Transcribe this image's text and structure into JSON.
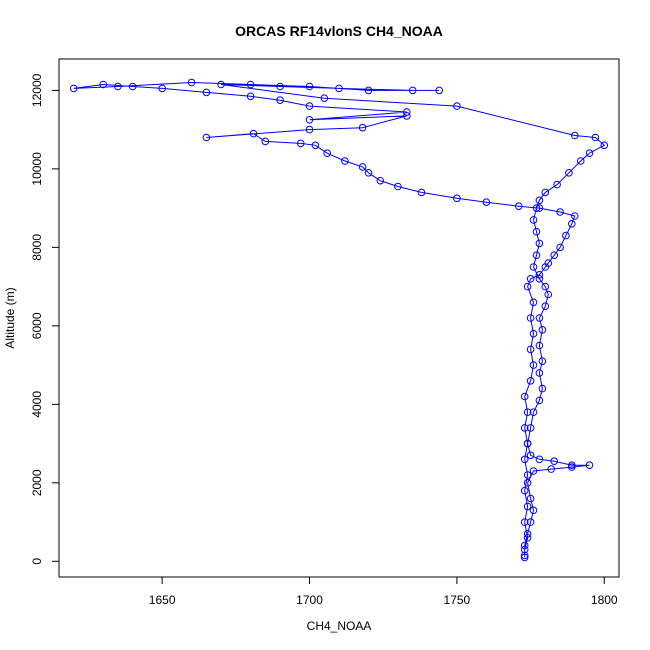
{
  "chart_data": {
    "type": "line",
    "title": "ORCAS RF14vlonS CH4_NOAA",
    "xlabel": "CH4_NOAA",
    "ylabel": "Altitude (m)",
    "xlim": [
      1615,
      1805
    ],
    "ylim": [
      -400,
      12800
    ],
    "xticks": [
      1650,
      1700,
      1750,
      1800
    ],
    "yticks": [
      0,
      2000,
      4000,
      6000,
      8000,
      10000,
      12000
    ],
    "grid": false,
    "series": [
      {
        "marker": "open-circle",
        "line": true,
        "points": [
          [
            1773,
            100
          ],
          [
            1773,
            300
          ],
          [
            1774,
            600
          ],
          [
            1773,
            1000
          ],
          [
            1774,
            1400
          ],
          [
            1773,
            1800
          ],
          [
            1774,
            2200
          ],
          [
            1773,
            2600
          ],
          [
            1774,
            3000
          ],
          [
            1773,
            3400
          ],
          [
            1774,
            3800
          ],
          [
            1773,
            4200
          ],
          [
            1775,
            4600
          ],
          [
            1776,
            5000
          ],
          [
            1775,
            5400
          ],
          [
            1776,
            5800
          ],
          [
            1775,
            6200
          ],
          [
            1776,
            6600
          ],
          [
            1774,
            7000
          ],
          [
            1775,
            7200
          ],
          [
            1778,
            7300
          ],
          [
            1780,
            7500
          ],
          [
            1781,
            7600
          ],
          [
            1783,
            7800
          ],
          [
            1785,
            8000
          ],
          [
            1787,
            8300
          ],
          [
            1789,
            8600
          ],
          [
            1790,
            8800
          ],
          [
            1785,
            8900
          ],
          [
            1778,
            9000
          ],
          [
            1771,
            9050
          ],
          [
            1760,
            9150
          ],
          [
            1750,
            9250
          ],
          [
            1738,
            9400
          ],
          [
            1730,
            9550
          ],
          [
            1724,
            9700
          ],
          [
            1720,
            9900
          ],
          [
            1718,
            10050
          ],
          [
            1712,
            10200
          ],
          [
            1706,
            10400
          ],
          [
            1702,
            10600
          ],
          [
            1697,
            10650
          ],
          [
            1685,
            10700
          ],
          [
            1681,
            10900
          ],
          [
            1665,
            10800
          ],
          [
            1700,
            11000
          ],
          [
            1718,
            11050
          ],
          [
            1733,
            11350
          ],
          [
            1700,
            11250
          ],
          [
            1733,
            11450
          ],
          [
            1700,
            11600
          ],
          [
            1690,
            11750
          ],
          [
            1680,
            11850
          ],
          [
            1665,
            11950
          ],
          [
            1650,
            12050
          ],
          [
            1640,
            12100
          ],
          [
            1630,
            12150
          ],
          [
            1620,
            12050
          ],
          [
            1635,
            12100
          ],
          [
            1660,
            12200
          ],
          [
            1680,
            12150
          ],
          [
            1700,
            12100
          ],
          [
            1720,
            12000
          ],
          [
            1744,
            12000
          ],
          [
            1735,
            12000
          ],
          [
            1710,
            12050
          ],
          [
            1690,
            12100
          ],
          [
            1670,
            12150
          ],
          [
            1705,
            11800
          ],
          [
            1750,
            11600
          ],
          [
            1790,
            10850
          ],
          [
            1797,
            10800
          ],
          [
            1800,
            10600
          ],
          [
            1795,
            10400
          ],
          [
            1792,
            10200
          ],
          [
            1788,
            9900
          ],
          [
            1784,
            9600
          ],
          [
            1780,
            9400
          ],
          [
            1778,
            9200
          ],
          [
            1777,
            9000
          ],
          [
            1776,
            8700
          ],
          [
            1777,
            8400
          ],
          [
            1778,
            8100
          ],
          [
            1777,
            7800
          ],
          [
            1776,
            7500
          ],
          [
            1778,
            7200
          ],
          [
            1780,
            7000
          ],
          [
            1781,
            6800
          ],
          [
            1780,
            6500
          ],
          [
            1778,
            6200
          ],
          [
            1779,
            5900
          ],
          [
            1778,
            5500
          ],
          [
            1779,
            5100
          ],
          [
            1778,
            4800
          ],
          [
            1779,
            4400
          ],
          [
            1778,
            4100
          ],
          [
            1776,
            3800
          ],
          [
            1775,
            3400
          ],
          [
            1774,
            3000
          ],
          [
            1775,
            2700
          ],
          [
            1778,
            2600
          ],
          [
            1783,
            2550
          ],
          [
            1789,
            2450
          ],
          [
            1795,
            2450
          ],
          [
            1789,
            2400
          ],
          [
            1782,
            2350
          ],
          [
            1776,
            2300
          ],
          [
            1774,
            2000
          ],
          [
            1775,
            1600
          ],
          [
            1776,
            1300
          ],
          [
            1775,
            1000
          ],
          [
            1774,
            700
          ],
          [
            1773,
            400
          ],
          [
            1773,
            150
          ]
        ]
      }
    ],
    "colors": {
      "series": "#0000ff",
      "axis": "#000000",
      "background": "#ffffff"
    }
  }
}
